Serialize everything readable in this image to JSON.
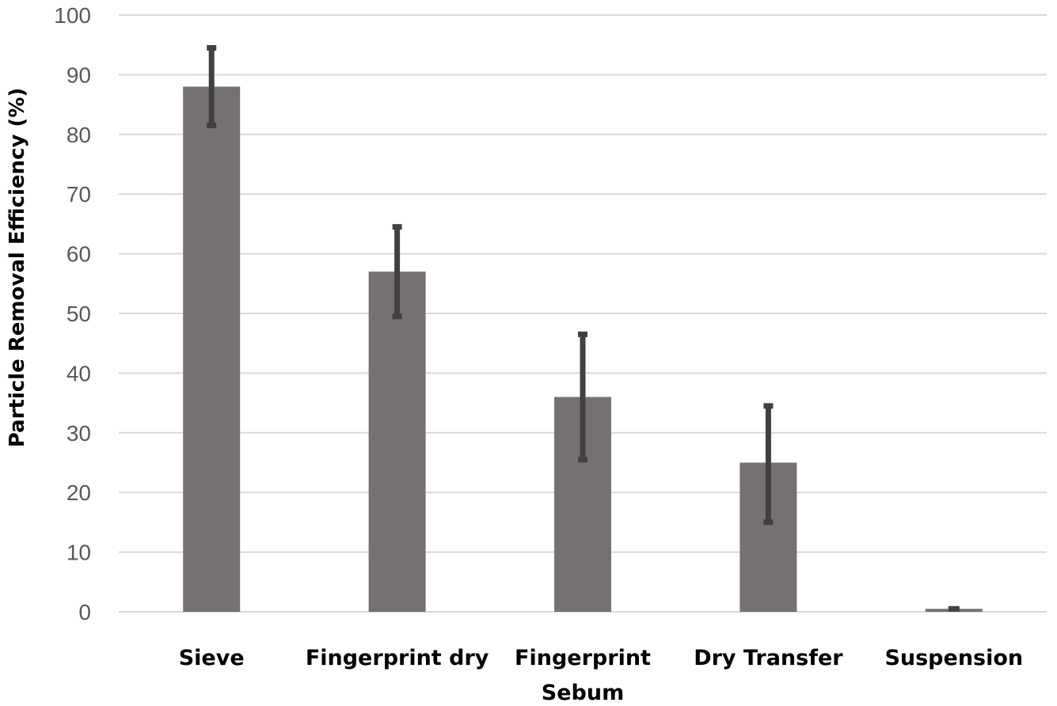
{
  "chart_data": {
    "type": "bar",
    "title": "",
    "xlabel": "",
    "ylabel": "Particle Removal Efficiency (%)",
    "ylim": [
      0,
      100
    ],
    "yticks": [
      0,
      10,
      20,
      30,
      40,
      50,
      60,
      70,
      80,
      90,
      100
    ],
    "categories": [
      [
        "Sieve"
      ],
      [
        "Fingerprint dry"
      ],
      [
        "Fingerprint",
        "Sebum"
      ],
      [
        "Dry Transfer"
      ],
      [
        "Suspension"
      ]
    ],
    "series": [
      {
        "values": [
          88,
          57,
          36,
          25,
          0.5
        ],
        "error_upper": [
          94.5,
          64.5,
          46.5,
          34.5,
          0.5
        ],
        "error_lower": [
          81.5,
          49.5,
          25.5,
          15,
          0.5
        ]
      }
    ],
    "grid": true,
    "legend": "none",
    "colors": {
      "bar": "#767171",
      "error_bar": "#404040",
      "grid": "#d9d9d9",
      "tick_text": "#595959"
    }
  }
}
